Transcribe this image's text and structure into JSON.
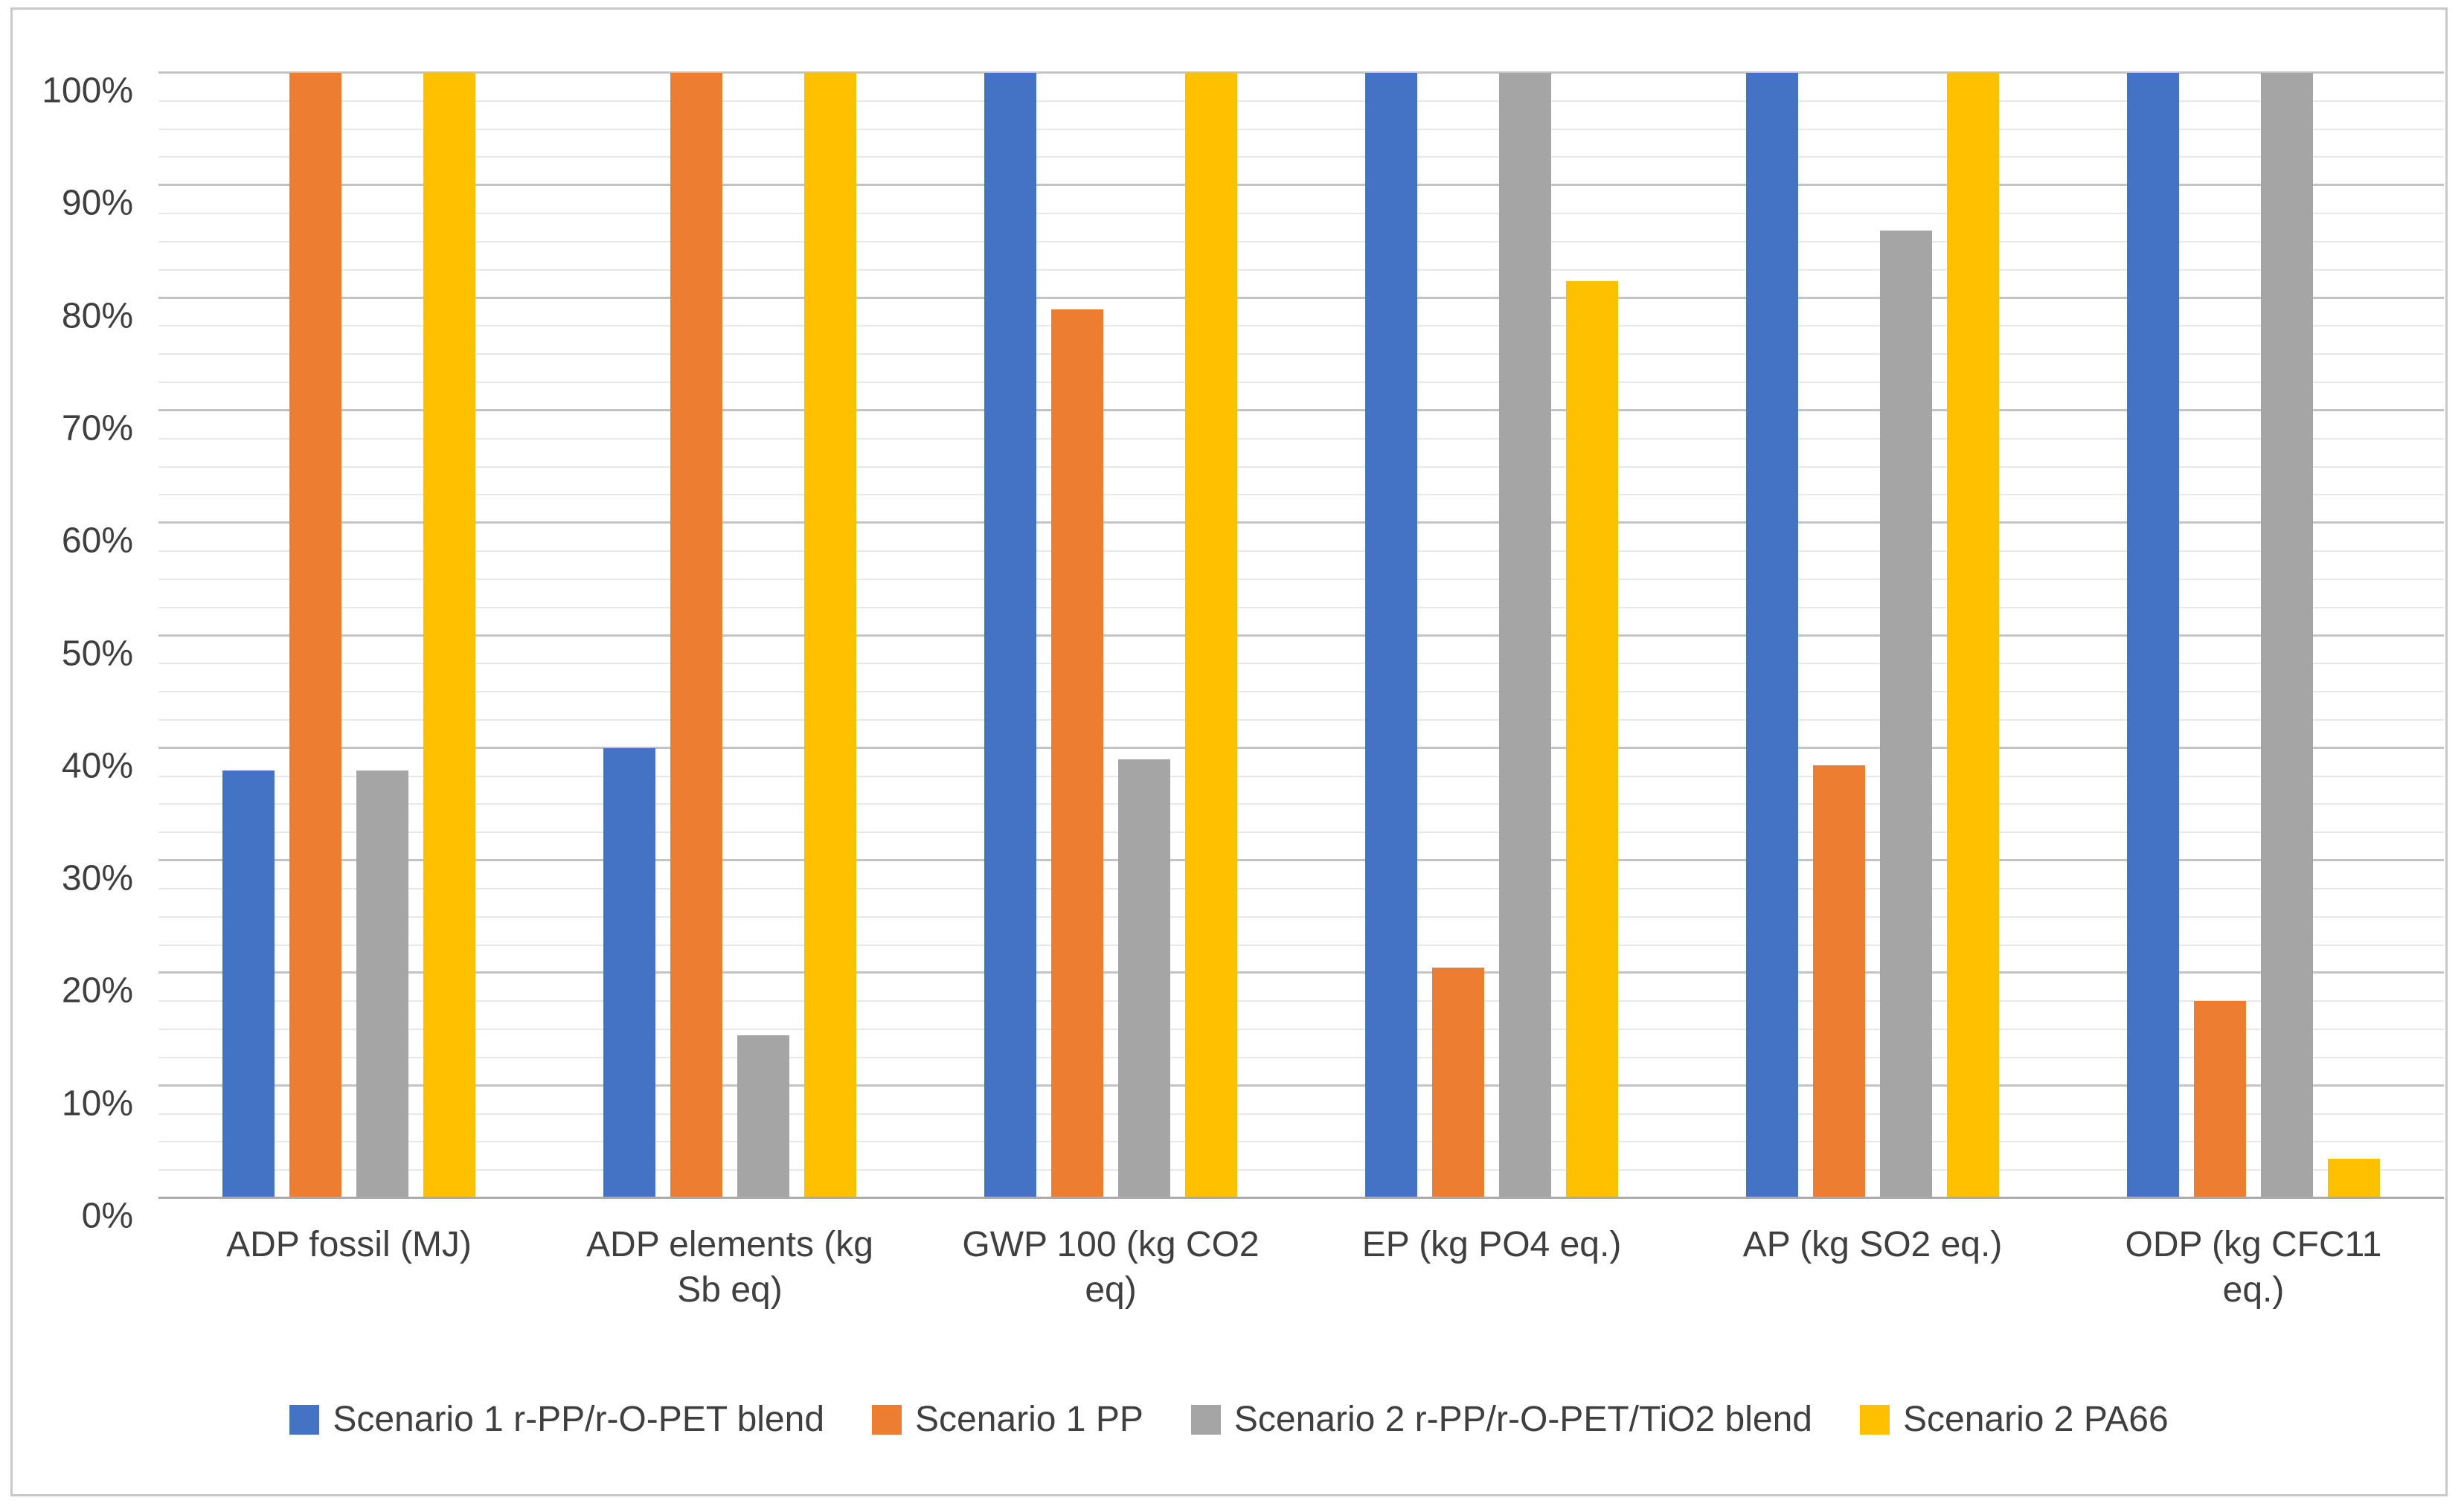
{
  "chart_data": {
    "type": "bar",
    "title": "",
    "xlabel": "",
    "ylabel": "",
    "categories": [
      "ADP fossil (MJ)",
      "ADP elements (kg Sb eq)",
      "GWP 100 (kg CO2 eq)",
      "EP (kg PO4 eq.)",
      "AP (kg SO2 eq.)",
      "ODP (kg CFC11 eq.)"
    ],
    "series": [
      {
        "name": "Scenario 1 r-PP/r-O-PET blend",
        "color": "#4472C4",
        "values": [
          38,
          40,
          100,
          100,
          100,
          100
        ]
      },
      {
        "name": "Scenario 1 PP",
        "color": "#ED7D31",
        "values": [
          100,
          100,
          79,
          20.5,
          38.5,
          17.5
        ]
      },
      {
        "name": "Scenario 2 r-PP/r-O-PET/TiO2 blend",
        "color": "#A5A5A5",
        "values": [
          38,
          14.5,
          39,
          100,
          86,
          100
        ]
      },
      {
        "name": "Scenario 2 PA66",
        "color": "#FFC000",
        "values": [
          100,
          100,
          100,
          81.5,
          100,
          3.5
        ]
      }
    ],
    "y_axis": {
      "min": 0,
      "max": 100,
      "major_step": 10,
      "minor_step": 2.5,
      "tick_labels": [
        "0%",
        "10%",
        "20%",
        "30%",
        "40%",
        "50%",
        "60%",
        "70%",
        "80%",
        "90%",
        "100%"
      ]
    },
    "grid": {
      "major_color": "#c4c4c4",
      "minor_color": "#e8e8e8",
      "visible": true
    },
    "legend_position": "bottom"
  }
}
